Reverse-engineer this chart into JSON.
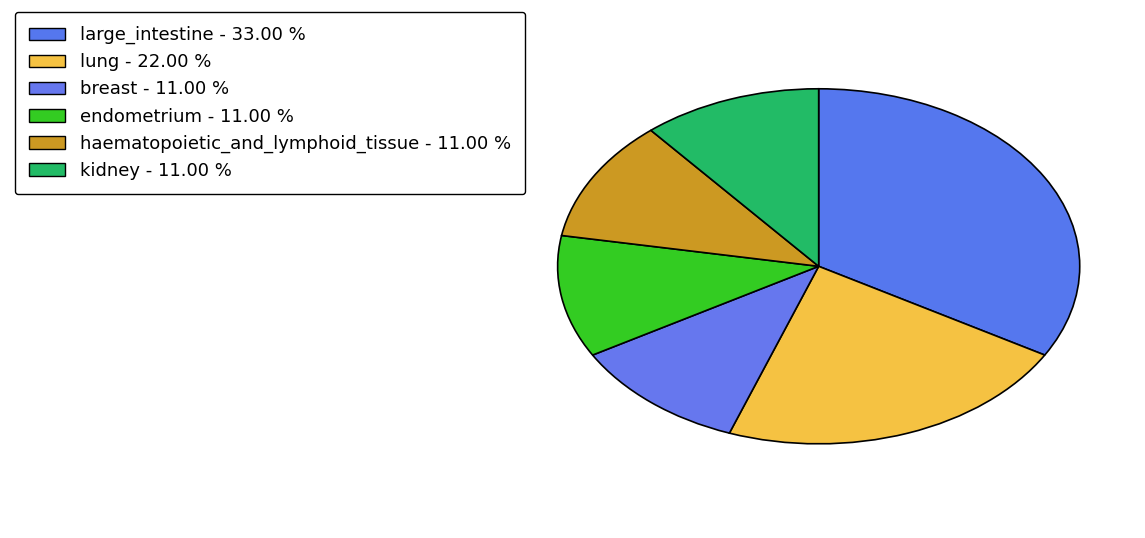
{
  "labels": [
    "large_intestine",
    "lung",
    "breast",
    "endometrium",
    "haematopoietic_and_lymphoid_tissue",
    "kidney"
  ],
  "values": [
    33,
    22,
    11,
    11,
    11,
    11
  ],
  "colors": [
    "#5577ee",
    "#f5c242",
    "#6677ee",
    "#33cc22",
    "#cc9922",
    "#22bb66"
  ],
  "legend_labels": [
    "large_intestine - 33.00 %",
    "lung - 22.00 %",
    "breast - 11.00 %",
    "endometrium - 11.00 %",
    "haematopoietic_and_lymphoid_tissue - 11.00 %",
    "kidney - 11.00 %"
  ],
  "background_color": "#ffffff",
  "legend_fontsize": 13,
  "startangle": 90,
  "aspect_ratio": 0.68
}
